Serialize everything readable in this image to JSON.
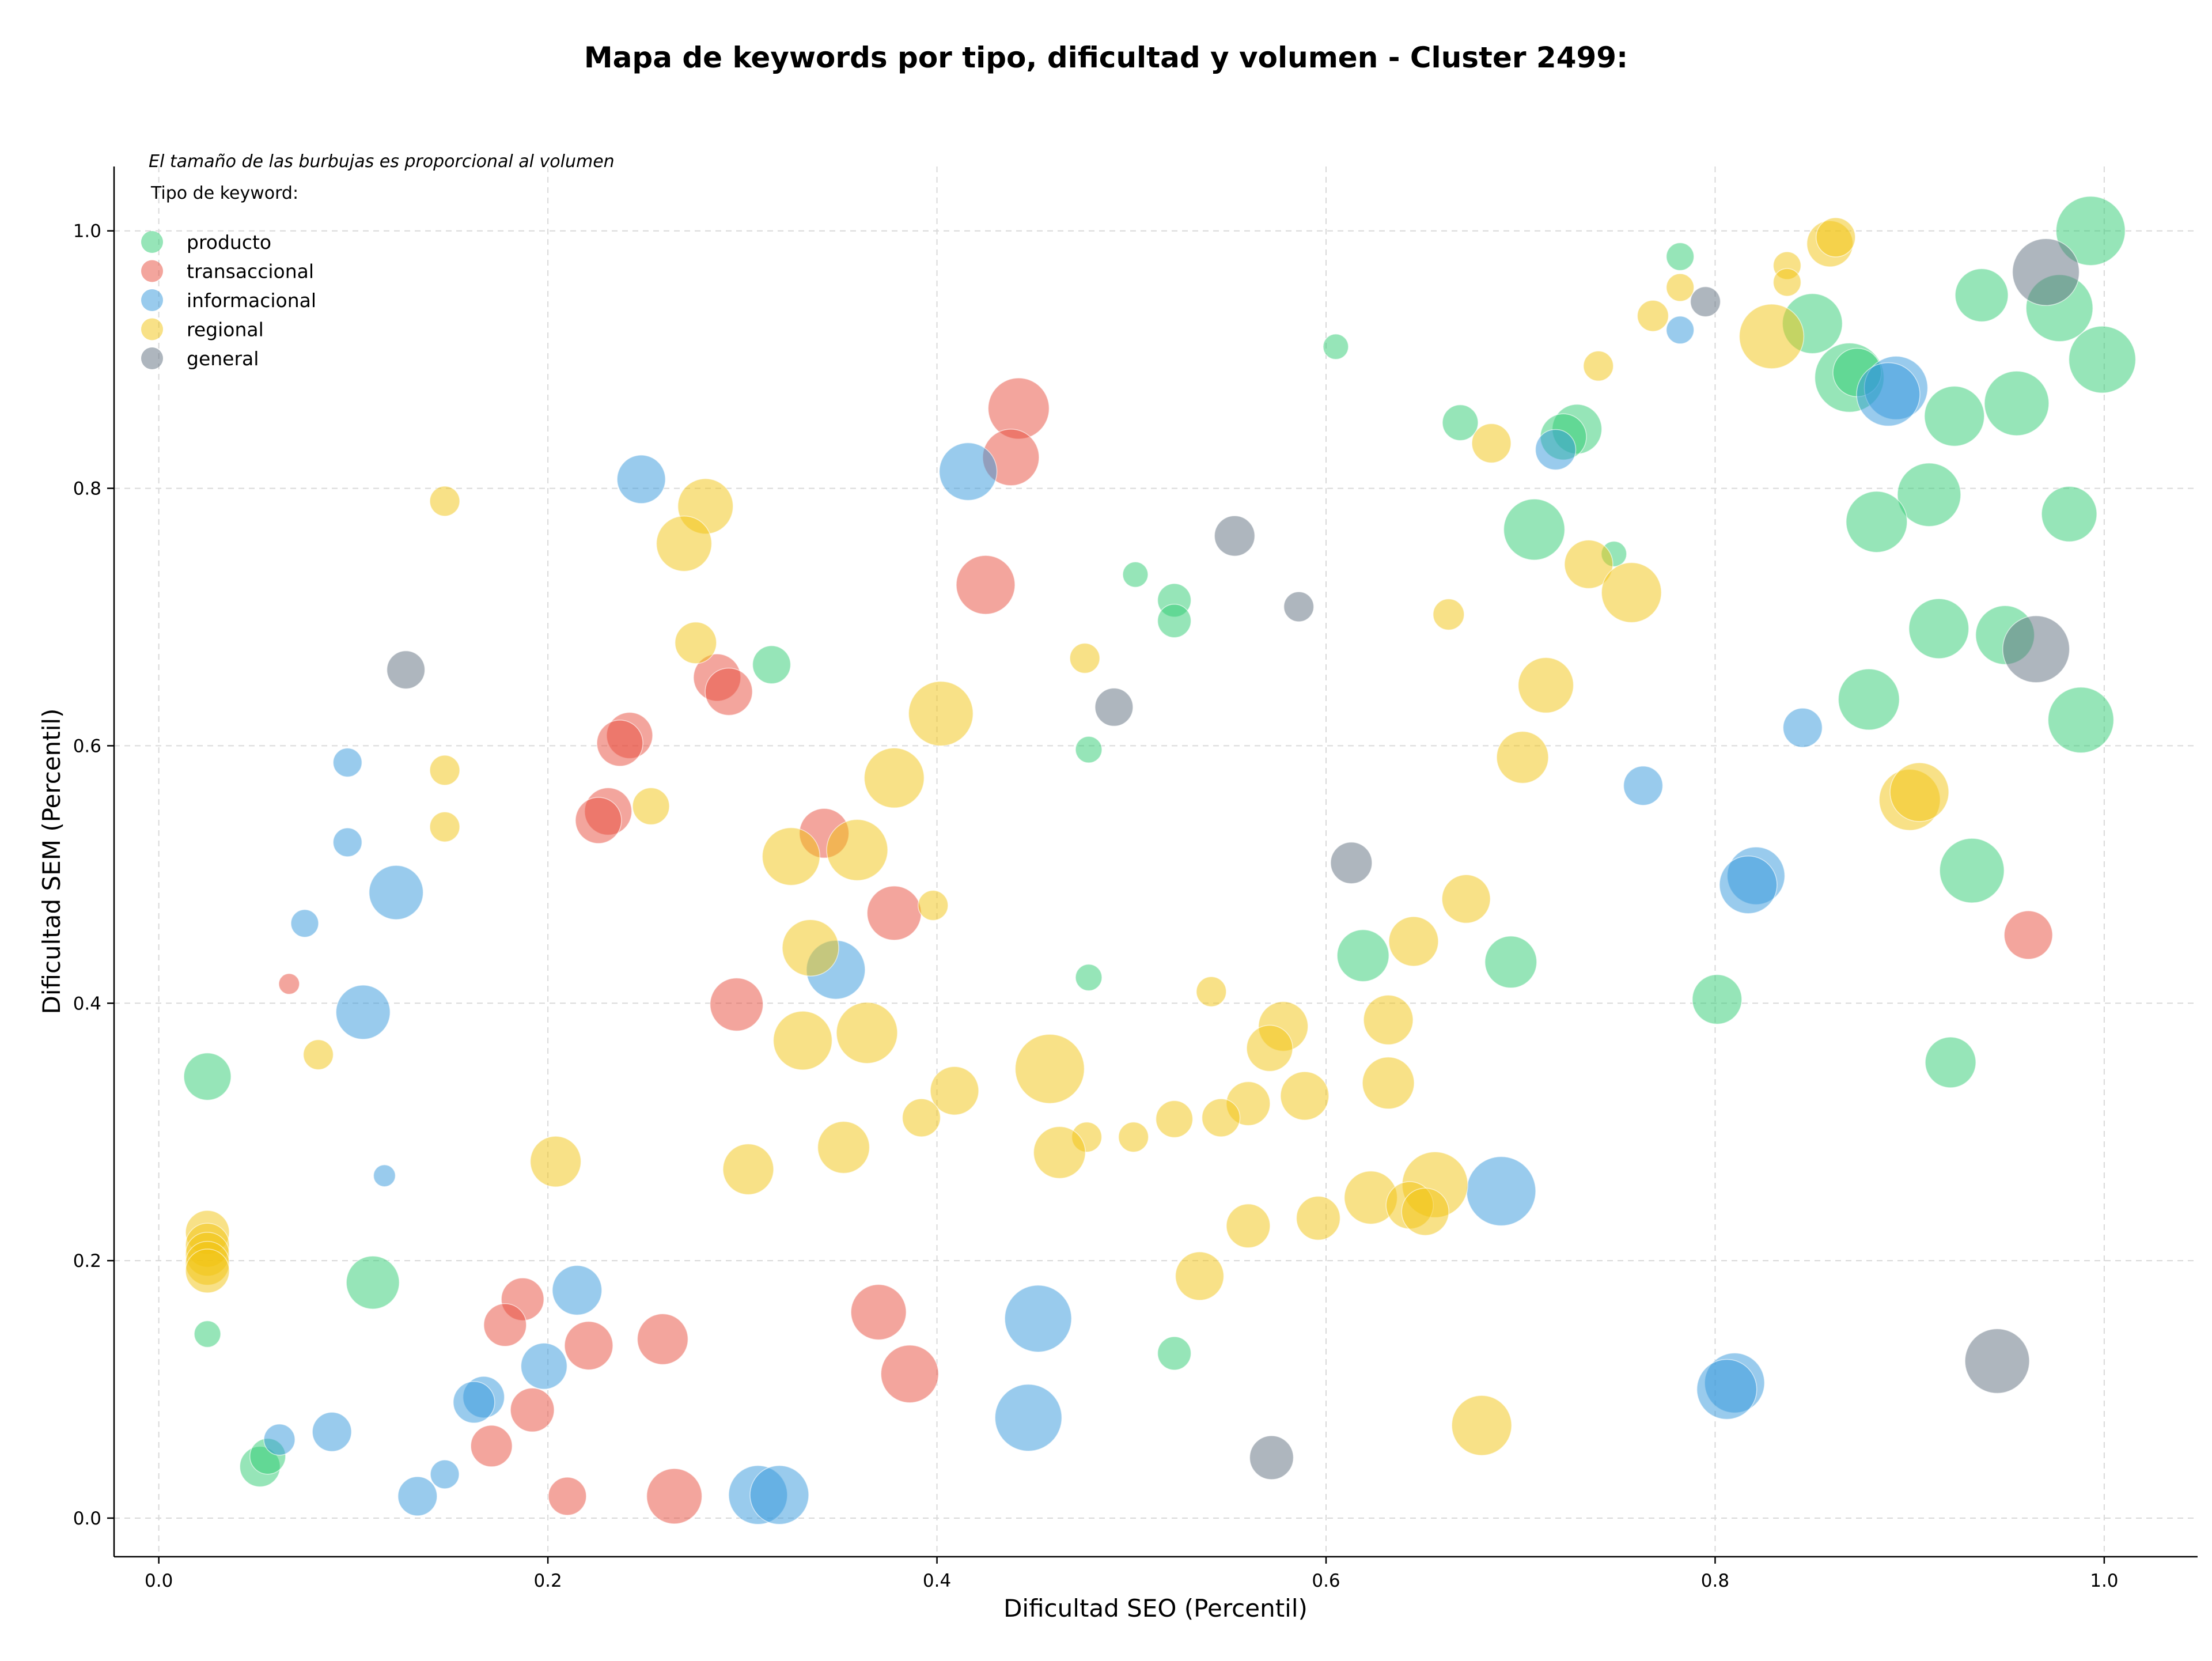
{
  "colors": {
    "producto": "#2ecc71",
    "transaccional": "#e74c3c",
    "informacional": "#3498db",
    "regional": "#f1c40f",
    "general": "#5d6d7e",
    "grid": "#d9d9d9",
    "axis": "#000000"
  },
  "chart_data": {
    "type": "scatter",
    "title": "Mapa de keywords por tipo, dificultad y volumen - Cluster 2499:",
    "xlabel": "Dificultad SEO (Percentil)",
    "ylabel": "Dificultad SEM (Percentil)",
    "xlim": [
      -0.023,
      1.048
    ],
    "ylim": [
      -0.03,
      1.05
    ],
    "xticks": [
      0.0,
      0.2,
      0.4,
      0.6,
      0.8,
      1.0
    ],
    "xtick_labels": [
      "0.0",
      "0.2",
      "0.4",
      "0.6",
      "0.8",
      "1.0"
    ],
    "yticks": [
      0.0,
      0.2,
      0.4,
      0.6,
      0.8,
      1.0
    ],
    "ytick_labels": [
      "0.0",
      "0.2",
      "0.4",
      "0.6",
      "0.8",
      "1.0"
    ],
    "grid": true,
    "size_note": "El tamaño de las burbujas es proporcional al volumen",
    "legend": {
      "title": "Tipo de keyword:",
      "placement": "top-left",
      "entries": [
        "producto",
        "transaccional",
        "informacional",
        "regional",
        "general"
      ]
    },
    "series": [
      {
        "name": "producto",
        "color": "#2ecc71",
        "points": [
          [
            0.993,
            1.0,
            60
          ],
          [
            0.977,
            0.94,
            58
          ],
          [
            0.999,
            0.9,
            58
          ],
          [
            0.955,
            0.866,
            56
          ],
          [
            0.937,
            0.95,
            46
          ],
          [
            0.923,
            0.856,
            52
          ],
          [
            0.91,
            0.795,
            55
          ],
          [
            0.883,
            0.774,
            53
          ],
          [
            0.869,
            0.886,
            60
          ],
          [
            0.85,
            0.928,
            52
          ],
          [
            0.873,
            0.89,
            42
          ],
          [
            0.729,
            0.846,
            43
          ],
          [
            0.722,
            0.84,
            40
          ],
          [
            0.707,
            0.768,
            53
          ],
          [
            0.669,
            0.851,
            31
          ],
          [
            0.782,
            0.98,
            24
          ],
          [
            0.748,
            0.749,
            22
          ],
          [
            0.605,
            0.91,
            22
          ],
          [
            0.502,
            0.733,
            22
          ],
          [
            0.522,
            0.713,
            29
          ],
          [
            0.522,
            0.697,
            29
          ],
          [
            0.315,
            0.663,
            33
          ],
          [
            0.478,
            0.597,
            23
          ],
          [
            0.988,
            0.62,
            57
          ],
          [
            0.982,
            0.78,
            48
          ],
          [
            0.949,
            0.686,
            51
          ],
          [
            0.915,
            0.691,
            52
          ],
          [
            0.879,
            0.636,
            53
          ],
          [
            0.932,
            0.503,
            56
          ],
          [
            0.619,
            0.437,
            45
          ],
          [
            0.695,
            0.432,
            45
          ],
          [
            0.478,
            0.42,
            23
          ],
          [
            0.801,
            0.403,
            43
          ],
          [
            0.921,
            0.354,
            44
          ],
          [
            0.025,
            0.343,
            41
          ],
          [
            0.11,
            0.183,
            46
          ],
          [
            0.025,
            0.143,
            23
          ],
          [
            0.522,
            0.128,
            29
          ],
          [
            0.052,
            0.04,
            35
          ],
          [
            0.056,
            0.048,
            31
          ]
        ]
      },
      {
        "name": "transaccional",
        "color": "#e74c3c",
        "points": [
          [
            0.442,
            0.862,
            53
          ],
          [
            0.438,
            0.824,
            49
          ],
          [
            0.425,
            0.725,
            51
          ],
          [
            0.287,
            0.653,
            41
          ],
          [
            0.293,
            0.642,
            41
          ],
          [
            0.242,
            0.608,
            40
          ],
          [
            0.237,
            0.602,
            40
          ],
          [
            0.231,
            0.549,
            41
          ],
          [
            0.226,
            0.542,
            40
          ],
          [
            0.342,
            0.532,
            43
          ],
          [
            0.378,
            0.47,
            47
          ],
          [
            0.067,
            0.415,
            18
          ],
          [
            0.297,
            0.399,
            46
          ],
          [
            0.961,
            0.453,
            42
          ],
          [
            0.187,
            0.17,
            37
          ],
          [
            0.178,
            0.15,
            37
          ],
          [
            0.221,
            0.134,
            42
          ],
          [
            0.259,
            0.139,
            44
          ],
          [
            0.192,
            0.084,
            38
          ],
          [
            0.37,
            0.16,
            48
          ],
          [
            0.386,
            0.112,
            50
          ],
          [
            0.171,
            0.056,
            36
          ],
          [
            0.21,
            0.017,
            33
          ],
          [
            0.265,
            0.017,
            48
          ]
        ]
      },
      {
        "name": "informacional",
        "color": "#3498db",
        "points": [
          [
            0.893,
            0.878,
            55
          ],
          [
            0.889,
            0.873,
            55
          ],
          [
            0.718,
            0.83,
            35
          ],
          [
            0.248,
            0.807,
            42
          ],
          [
            0.416,
            0.813,
            50
          ],
          [
            0.782,
            0.923,
            24
          ],
          [
            0.845,
            0.614,
            34
          ],
          [
            0.763,
            0.569,
            34
          ],
          [
            0.821,
            0.499,
            50
          ],
          [
            0.817,
            0.492,
            50
          ],
          [
            0.097,
            0.587,
            25
          ],
          [
            0.097,
            0.525,
            25
          ],
          [
            0.122,
            0.486,
            47
          ],
          [
            0.075,
            0.462,
            24
          ],
          [
            0.105,
            0.393,
            47
          ],
          [
            0.348,
            0.426,
            51
          ],
          [
            0.116,
            0.266,
            19
          ],
          [
            0.69,
            0.254,
            60
          ],
          [
            0.215,
            0.177,
            43
          ],
          [
            0.198,
            0.118,
            40
          ],
          [
            0.167,
            0.094,
            36
          ],
          [
            0.162,
            0.09,
            36
          ],
          [
            0.089,
            0.067,
            34
          ],
          [
            0.062,
            0.061,
            27
          ],
          [
            0.452,
            0.155,
            58
          ],
          [
            0.447,
            0.078,
            58
          ],
          [
            0.81,
            0.105,
            52
          ],
          [
            0.806,
            0.1,
            52
          ],
          [
            0.308,
            0.018,
            51
          ],
          [
            0.319,
            0.018,
            51
          ],
          [
            0.133,
            0.017,
            34
          ],
          [
            0.147,
            0.034,
            25
          ]
        ]
      },
      {
        "name": "regional",
        "color": "#f1c40f",
        "points": [
          [
            0.859,
            0.99,
            40
          ],
          [
            0.862,
            0.995,
            34
          ],
          [
            0.837,
            0.973,
            24
          ],
          [
            0.837,
            0.96,
            24
          ],
          [
            0.782,
            0.956,
            24
          ],
          [
            0.768,
            0.934,
            27
          ],
          [
            0.829,
            0.918,
            56
          ],
          [
            0.74,
            0.895,
            26
          ],
          [
            0.685,
            0.835,
            34
          ],
          [
            0.735,
            0.741,
            42
          ],
          [
            0.757,
            0.719,
            52
          ],
          [
            0.663,
            0.702,
            27
          ],
          [
            0.713,
            0.647,
            48
          ],
          [
            0.701,
            0.591,
            45
          ],
          [
            0.9,
            0.558,
            53
          ],
          [
            0.905,
            0.564,
            51
          ],
          [
            0.147,
            0.79,
            26
          ],
          [
            0.281,
            0.786,
            48
          ],
          [
            0.27,
            0.757,
            48
          ],
          [
            0.276,
            0.68,
            36
          ],
          [
            0.147,
            0.581,
            26
          ],
          [
            0.147,
            0.537,
            26
          ],
          [
            0.253,
            0.553,
            32
          ],
          [
            0.402,
            0.625,
            56
          ],
          [
            0.378,
            0.575,
            52
          ],
          [
            0.325,
            0.514,
            50
          ],
          [
            0.359,
            0.519,
            53
          ],
          [
            0.476,
            0.668,
            26
          ],
          [
            0.398,
            0.476,
            26
          ],
          [
            0.335,
            0.443,
            49
          ],
          [
            0.331,
            0.371,
            51
          ],
          [
            0.364,
            0.377,
            53
          ],
          [
            0.082,
            0.36,
            26
          ],
          [
            0.672,
            0.481,
            42
          ],
          [
            0.645,
            0.448,
            43
          ],
          [
            0.632,
            0.387,
            43
          ],
          [
            0.578,
            0.382,
            43
          ],
          [
            0.571,
            0.365,
            40
          ],
          [
            0.541,
            0.409,
            26
          ],
          [
            0.589,
            0.328,
            42
          ],
          [
            0.632,
            0.338,
            45
          ],
          [
            0.56,
            0.322,
            38
          ],
          [
            0.546,
            0.311,
            33
          ],
          [
            0.522,
            0.31,
            32
          ],
          [
            0.501,
            0.296,
            26
          ],
          [
            0.477,
            0.296,
            26
          ],
          [
            0.458,
            0.349,
            60
          ],
          [
            0.409,
            0.332,
            42
          ],
          [
            0.392,
            0.311,
            33
          ],
          [
            0.352,
            0.288,
            45
          ],
          [
            0.303,
            0.271,
            44
          ],
          [
            0.204,
            0.277,
            44
          ],
          [
            0.463,
            0.284,
            45
          ],
          [
            0.656,
            0.259,
            57
          ],
          [
            0.623,
            0.249,
            46
          ],
          [
            0.643,
            0.243,
            41
          ],
          [
            0.651,
            0.238,
            41
          ],
          [
            0.596,
            0.233,
            38
          ],
          [
            0.56,
            0.227,
            38
          ],
          [
            0.535,
            0.188,
            42
          ],
          [
            0.68,
            0.072,
            52
          ],
          [
            0.025,
            0.222,
            38
          ],
          [
            0.025,
            0.212,
            38
          ],
          [
            0.025,
            0.205,
            38
          ],
          [
            0.025,
            0.198,
            38
          ],
          [
            0.025,
            0.192,
            38
          ]
        ]
      },
      {
        "name": "general",
        "color": "#5d6d7e",
        "points": [
          [
            0.97,
            0.968,
            58
          ],
          [
            0.965,
            0.675,
            58
          ],
          [
            0.795,
            0.945,
            26
          ],
          [
            0.553,
            0.763,
            35
          ],
          [
            0.586,
            0.708,
            26
          ],
          [
            0.491,
            0.63,
            33
          ],
          [
            0.613,
            0.509,
            36
          ],
          [
            0.127,
            0.659,
            33
          ],
          [
            0.945,
            0.122,
            56
          ],
          [
            0.572,
            0.047,
            38
          ]
        ]
      }
    ]
  }
}
